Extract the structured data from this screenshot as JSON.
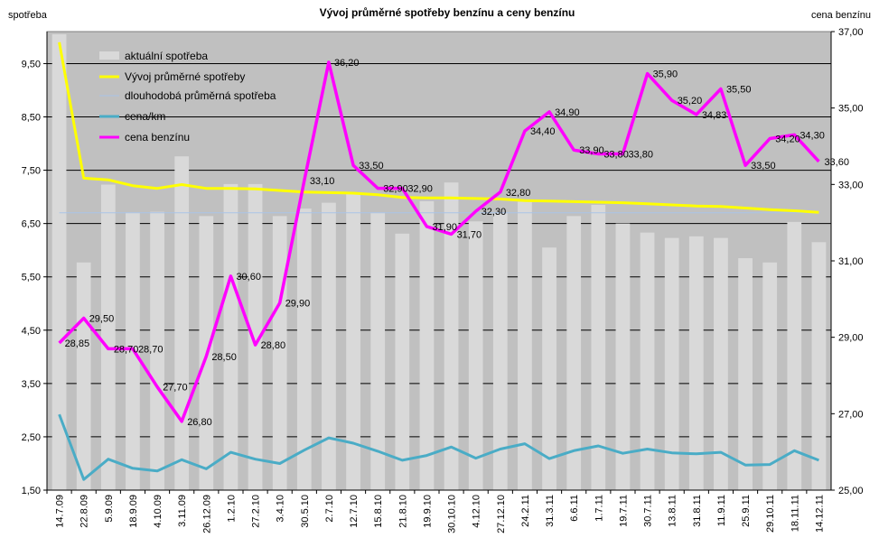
{
  "chart_data": {
    "type": "bar",
    "title": "Vývoj průměrné spotřeby benzínu a ceny benzínu",
    "y_left_label": "spotřeba",
    "y_right_label": "cena benzínu",
    "y_left_range": [
      1.5,
      10.1
    ],
    "y_left_ticks": [
      "1,50",
      "2,50",
      "3,50",
      "4,50",
      "5,50",
      "6,50",
      "7,50",
      "8,50",
      "9,50"
    ],
    "y_left_tick_values": [
      1.5,
      2.5,
      3.5,
      4.5,
      5.5,
      6.5,
      7.5,
      8.5,
      9.5
    ],
    "y_right_range": [
      25.0,
      37.0
    ],
    "y_right_ticks": [
      "25,00",
      "27,00",
      "29,00",
      "31,00",
      "33,00",
      "35,00",
      "37,00"
    ],
    "y_right_tick_values": [
      25,
      27,
      29,
      31,
      33,
      35,
      37
    ],
    "grid": "horizontal",
    "legend_position": "top-left",
    "categories": [
      "14.7.09",
      "22.8.09",
      "5.9.09",
      "18.9.09",
      "4.10.09",
      "3.11.09",
      "26.12.09",
      "1.2.10",
      "27.2.10",
      "3.4.10",
      "30.5.10",
      "2.7.10",
      "12.7.10",
      "15.8.10",
      "21.8.10",
      "19.9.10",
      "30.10.10",
      "4.12.10",
      "27.12.10",
      "24.2.11",
      "31.3.11",
      "6.6.11",
      "1.7.11",
      "19.7.11",
      "30.7.11",
      "13.8.11",
      "31.8.11",
      "11.9.11",
      "25.9.11",
      "29.10.11",
      "18.11.11",
      "14.12.11"
    ],
    "series": [
      {
        "name": "aktuální spotřeba",
        "type": "bar",
        "axis": "left",
        "color": "#d9d9d9",
        "values": [
          10.05,
          5.77,
          7.23,
          6.71,
          6.72,
          7.76,
          6.64,
          7.24,
          7.24,
          6.64,
          6.78,
          6.89,
          7.06,
          6.71,
          6.31,
          6.92,
          7.27,
          6.54,
          6.71,
          6.91,
          6.05,
          6.64,
          6.85,
          6.5,
          6.33,
          6.23,
          6.26,
          6.23,
          5.85,
          5.77,
          6.53,
          6.15
        ]
      },
      {
        "name": "Vývoj průměrné spotřeby",
        "type": "line",
        "axis": "left",
        "color": "#ffff00",
        "values": [
          9.9,
          7.35,
          7.32,
          7.21,
          7.16,
          7.23,
          7.16,
          7.16,
          7.15,
          7.12,
          7.09,
          7.08,
          7.07,
          7.04,
          6.99,
          6.98,
          6.98,
          6.97,
          6.96,
          6.93,
          6.92,
          6.91,
          6.9,
          6.89,
          6.87,
          6.85,
          6.83,
          6.82,
          6.79,
          6.76,
          6.74,
          6.71
        ]
      },
      {
        "name": "dlouhodobá průměrná spotřeba",
        "type": "line",
        "axis": "left",
        "color": "#a9c4e8",
        "values": [
          6.7,
          6.7,
          6.7,
          6.7,
          6.7,
          6.7,
          6.7,
          6.7,
          6.7,
          6.7,
          6.7,
          6.7,
          6.7,
          6.7,
          6.7,
          6.7,
          6.7,
          6.7,
          6.7,
          6.7,
          6.7,
          6.7,
          6.7,
          6.7,
          6.7,
          6.7,
          6.7,
          6.7,
          6.7,
          6.7,
          6.7,
          6.7
        ]
      },
      {
        "name": "cena/km",
        "type": "line",
        "axis": "left",
        "color": "#4aacc6",
        "values": [
          2.92,
          1.7,
          2.08,
          1.91,
          1.86,
          2.07,
          1.9,
          2.21,
          2.08,
          2.0,
          2.25,
          2.48,
          2.38,
          2.23,
          2.06,
          2.15,
          2.31,
          2.1,
          2.27,
          2.37,
          2.09,
          2.24,
          2.33,
          2.19,
          2.27,
          2.2,
          2.18,
          2.21,
          1.97,
          1.98,
          2.24,
          2.06
        ]
      },
      {
        "name": "cena benzínu",
        "type": "line",
        "axis": "right",
        "color": "#ff00ff",
        "values": [
          28.85,
          29.5,
          28.7,
          28.7,
          27.7,
          26.8,
          28.5,
          30.6,
          28.8,
          29.9,
          33.1,
          36.2,
          33.5,
          32.9,
          32.9,
          31.9,
          31.7,
          32.3,
          32.8,
          34.4,
          34.9,
          33.9,
          33.8,
          33.8,
          35.9,
          35.2,
          34.83,
          35.5,
          33.5,
          34.2,
          34.3,
          33.6
        ]
      }
    ],
    "data_labels": [
      "28,85",
      "29,50",
      "28,70",
      "28,70",
      "27,70",
      "26,80",
      "28,50",
      "30,60",
      "28,80",
      "29,90",
      "33,10",
      "36,20",
      "33,50",
      "32,90",
      "32,90",
      "31,90",
      "31,70",
      "32,30",
      "32,80",
      "34,40",
      "34,90",
      "33,90",
      "33,80",
      "33,80",
      "35,90",
      "35,20",
      "34,83",
      "35,50",
      "33,50",
      "34,20",
      "34,30",
      "33,60"
    ]
  }
}
